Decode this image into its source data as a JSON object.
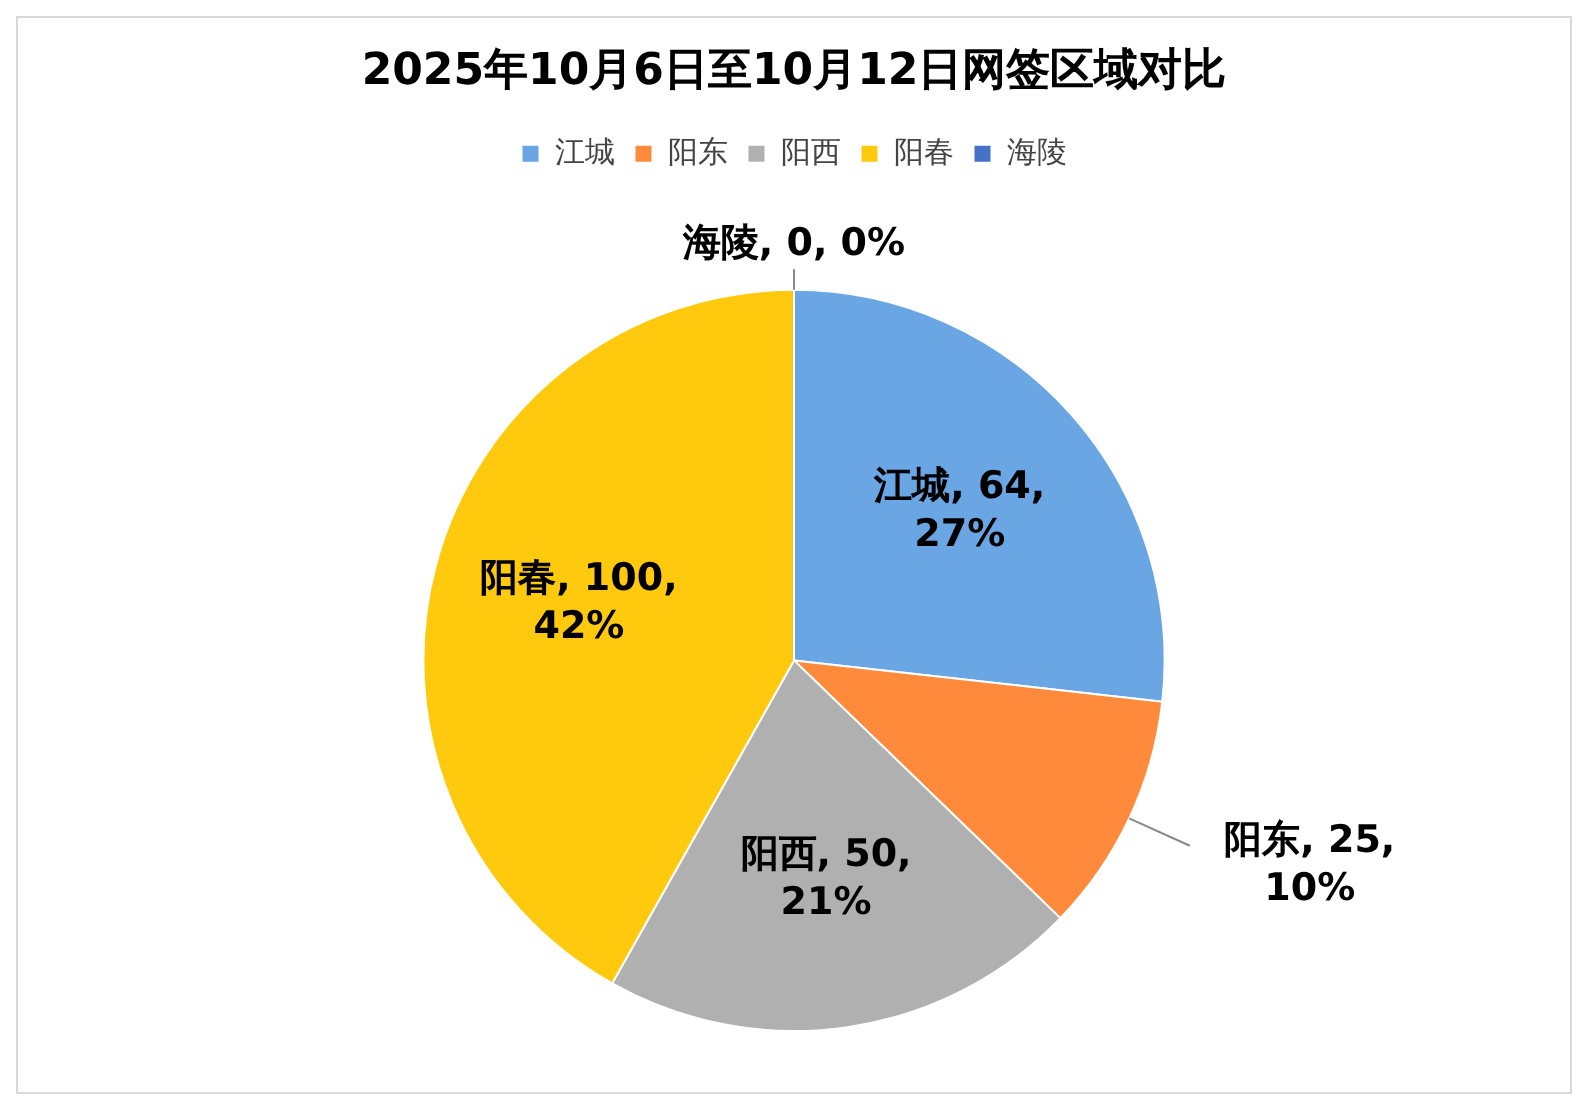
{
  "chart_data": {
    "type": "pie",
    "title": "2025年10月6日至10月12日网签区域对比",
    "legend": "top",
    "categories": [
      "江城",
      "阳东",
      "阳西",
      "阳春",
      "海陵"
    ],
    "values": [
      64,
      25,
      50,
      100,
      0
    ],
    "colors": [
      "#6aa6e4",
      "#ff8a3c",
      "#b0b0b0",
      "#ffc90e",
      "#4472c4"
    ],
    "value_labels": [
      "江城, 64, 27%",
      "阳东, 25, 10%",
      "阳西, 50, 21%",
      "阳春, 100, 42%",
      "海陵, 0, 0%"
    ]
  }
}
